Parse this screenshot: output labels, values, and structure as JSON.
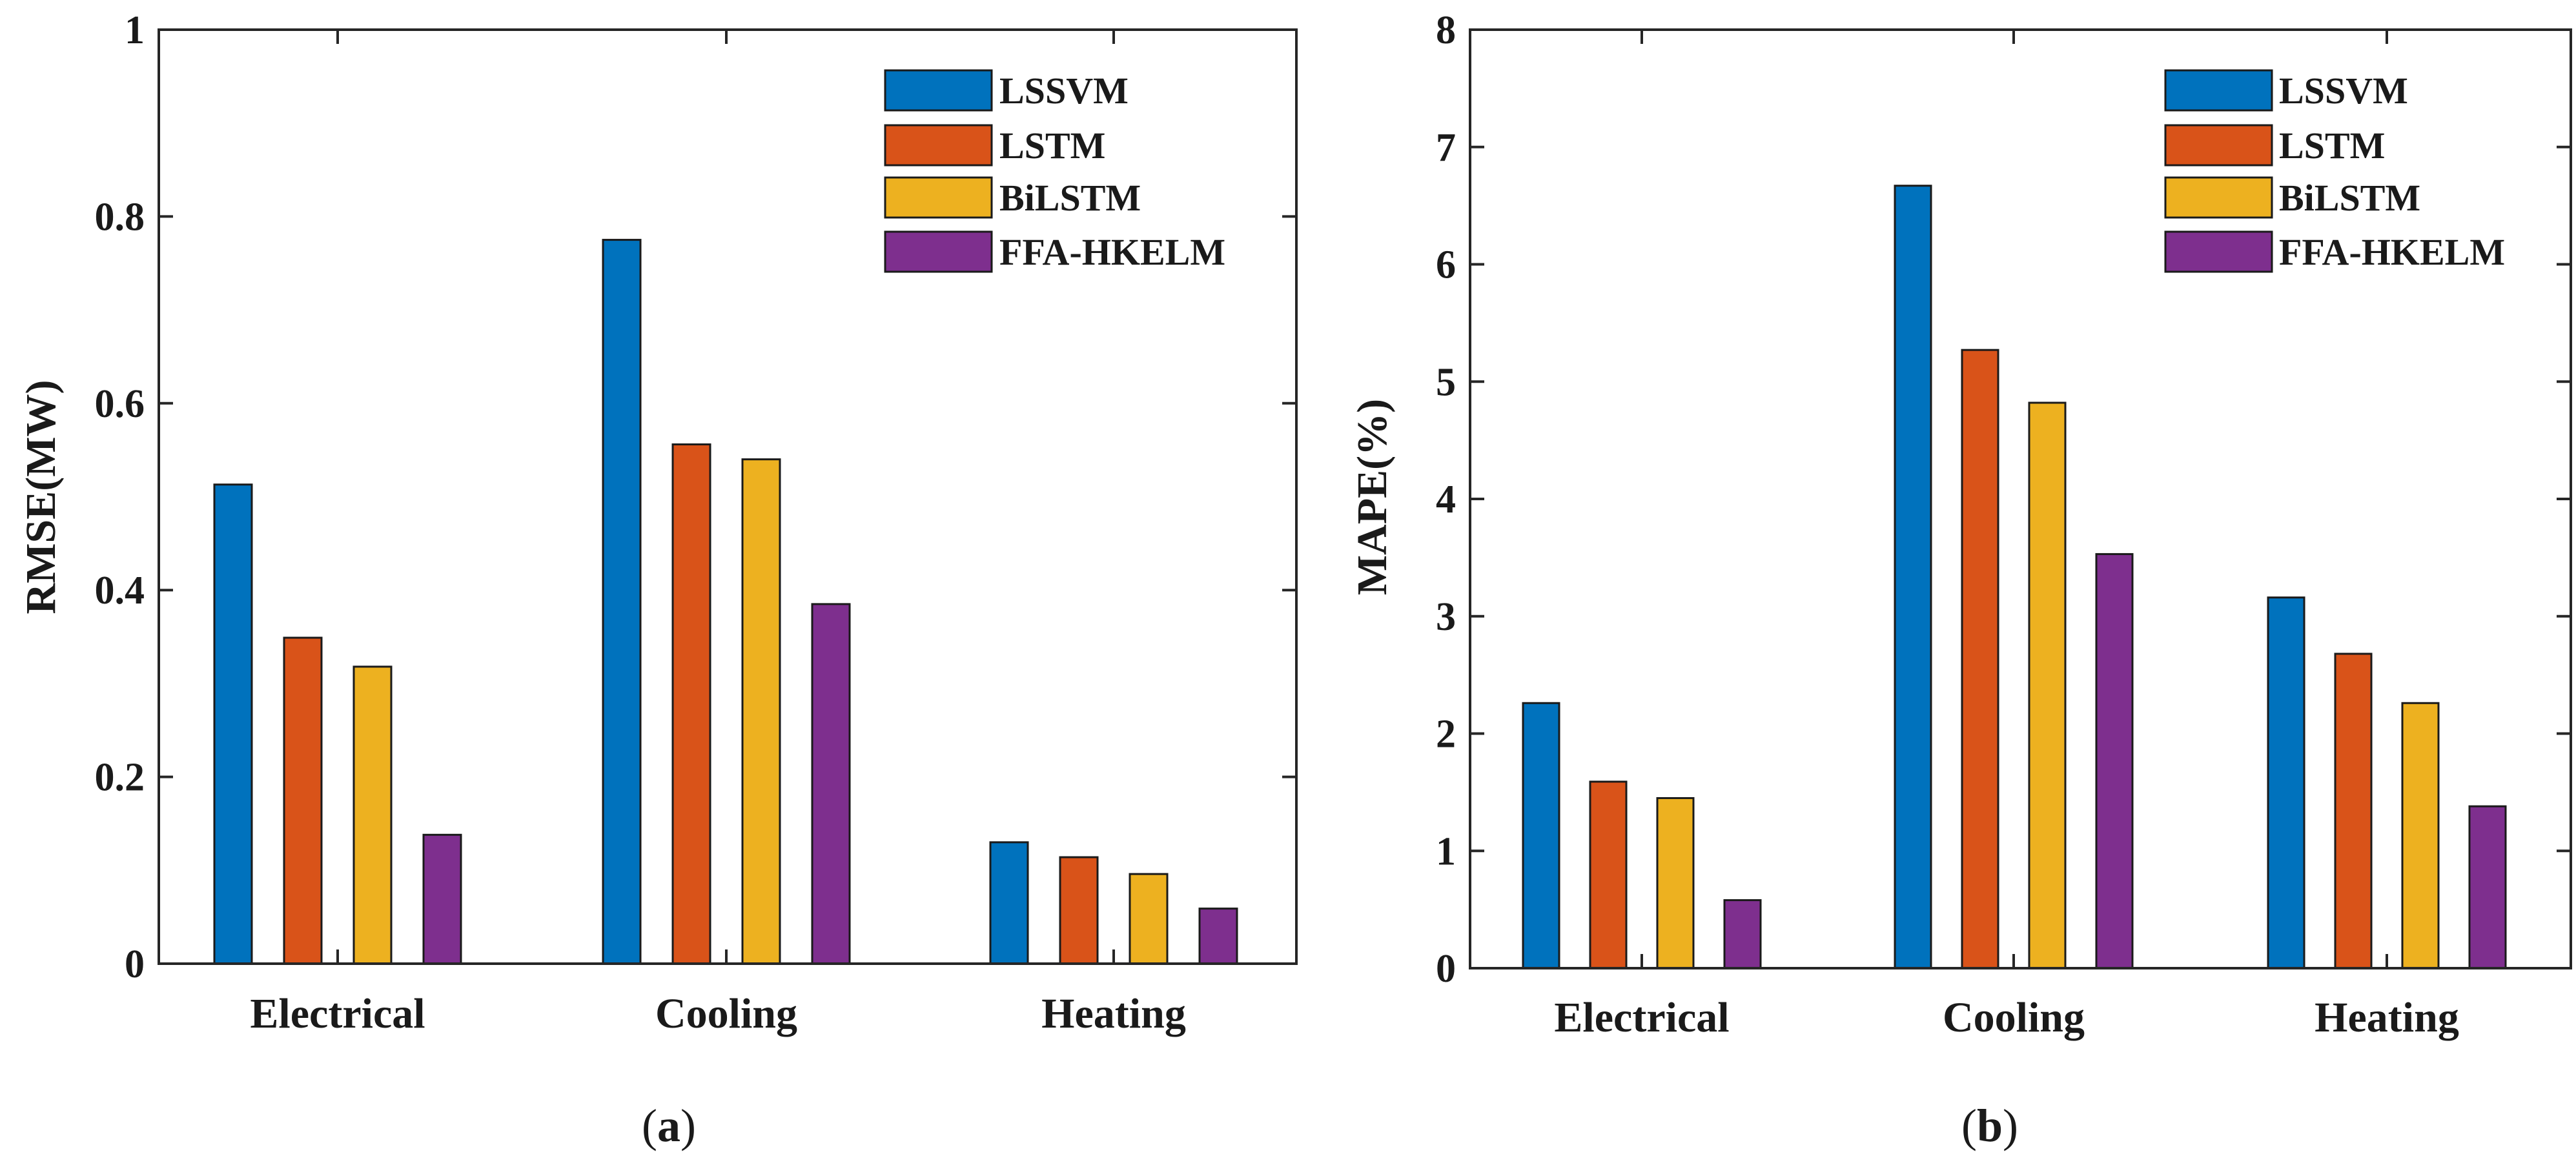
{
  "chart_data": [
    {
      "type": "bar",
      "caption": "a",
      "title": "",
      "xlabel": "",
      "ylabel": "RMSE(MW)",
      "ylim": [
        0,
        1
      ],
      "yticks": [
        0,
        0.2,
        0.4,
        0.6,
        0.8,
        1
      ],
      "ytick_labels": [
        "0",
        "0.2",
        "0.4",
        "0.6",
        "0.8",
        "1"
      ],
      "categories": [
        "Electrical",
        "Cooling",
        "Heating"
      ],
      "legend_position": "top-right",
      "series": [
        {
          "name": "LSSVM",
          "color": "#0072BD",
          "values": [
            0.513,
            0.775,
            0.13
          ]
        },
        {
          "name": "LSTM",
          "color": "#D95319",
          "values": [
            0.349,
            0.556,
            0.114
          ]
        },
        {
          "name": "BiLSTM",
          "color": "#EDB120",
          "values": [
            0.318,
            0.54,
            0.096
          ]
        },
        {
          "name": "FFA-HKELM",
          "color": "#7E2F8E",
          "values": [
            0.138,
            0.385,
            0.059
          ]
        }
      ]
    },
    {
      "type": "bar",
      "caption": "b",
      "title": "",
      "xlabel": "",
      "ylabel": "MAPE(%)",
      "ylim": [
        0,
        8
      ],
      "yticks": [
        0,
        1,
        2,
        3,
        4,
        5,
        6,
        7,
        8
      ],
      "ytick_labels": [
        "0",
        "1",
        "2",
        "3",
        "4",
        "5",
        "6",
        "7",
        "8"
      ],
      "categories": [
        "Electrical",
        "Cooling",
        "Heating"
      ],
      "legend_position": "top-right",
      "series": [
        {
          "name": "LSSVM",
          "color": "#0072BD",
          "values": [
            2.26,
            6.67,
            3.16
          ]
        },
        {
          "name": "LSTM",
          "color": "#D95319",
          "values": [
            1.59,
            5.27,
            2.68
          ]
        },
        {
          "name": "BiLSTM",
          "color": "#EDB120",
          "values": [
            1.45,
            4.82,
            2.26
          ]
        },
        {
          "name": "FFA-HKELM",
          "color": "#7E2F8E",
          "values": [
            0.58,
            3.53,
            1.38
          ]
        }
      ]
    }
  ],
  "captions": {
    "a": {
      "open": "(",
      "letter": "a",
      "close": ")"
    },
    "b": {
      "open": "(",
      "letter": "b",
      "close": ")"
    }
  }
}
